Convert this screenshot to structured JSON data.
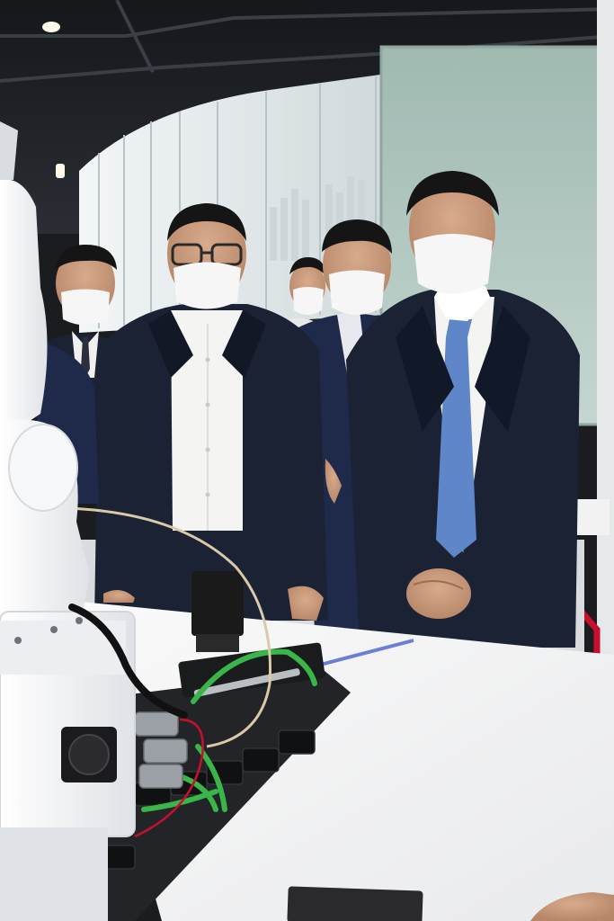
{
  "photo": {
    "subject": "",
    "palette": {
      "ceiling": "#1c1e22",
      "wall_glass": "#e8eef0",
      "wall_glass_shade": "#c9d3d6",
      "green_glass": "#a9c3bb",
      "suit_dark": "#1b2233",
      "suit_navy": "#1f2a4a",
      "shirt_white": "#f4f4f2",
      "tie_blue": "#5f86c8",
      "skin": "#c99a7c",
      "mask": "#f6f6f6",
      "hair": "#151515",
      "robot_white": "#f2f3f5",
      "table_white": "#f7f7f8",
      "cable_green": "#39b54a",
      "cable_black": "#111111",
      "metal": "#9aa0a6",
      "accent_red": "#c8102e",
      "tape_blue": "#6b7fd6"
    }
  }
}
